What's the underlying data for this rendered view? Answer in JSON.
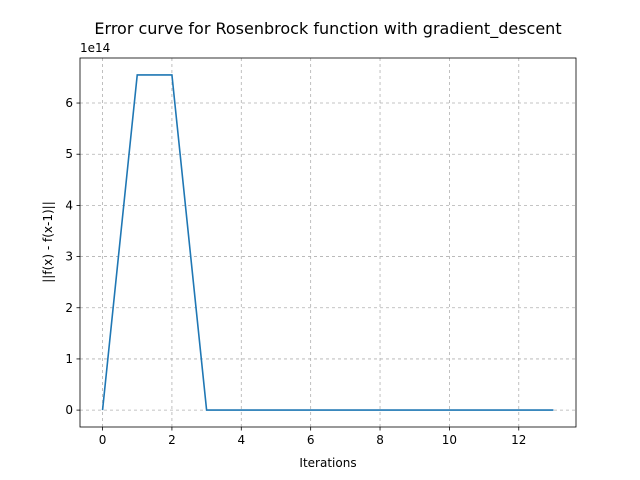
{
  "chart_data": {
    "type": "line",
    "title": "Error curve for Rosenbrock function with gradient_descent",
    "xlabel": "Iterations",
    "ylabel": "||f(x) - f(x-1)||",
    "y_offset_label": "1e14",
    "x_ticks": [
      0,
      2,
      4,
      6,
      8,
      10,
      12
    ],
    "y_ticks": [
      0,
      1,
      2,
      3,
      4,
      5,
      6
    ],
    "xlim": [
      -0.65,
      13.65
    ],
    "ylim": [
      -0.33,
      6.88
    ],
    "grid": true,
    "line_color": "#1f77b4",
    "series": [
      {
        "x": [
          0,
          1,
          2,
          3,
          4,
          5,
          6,
          7,
          8,
          9,
          10,
          11,
          12,
          13
        ],
        "y": [
          0,
          6.55,
          6.55,
          0,
          0,
          0,
          0,
          0,
          0,
          0,
          0,
          0,
          0,
          0
        ]
      }
    ]
  }
}
